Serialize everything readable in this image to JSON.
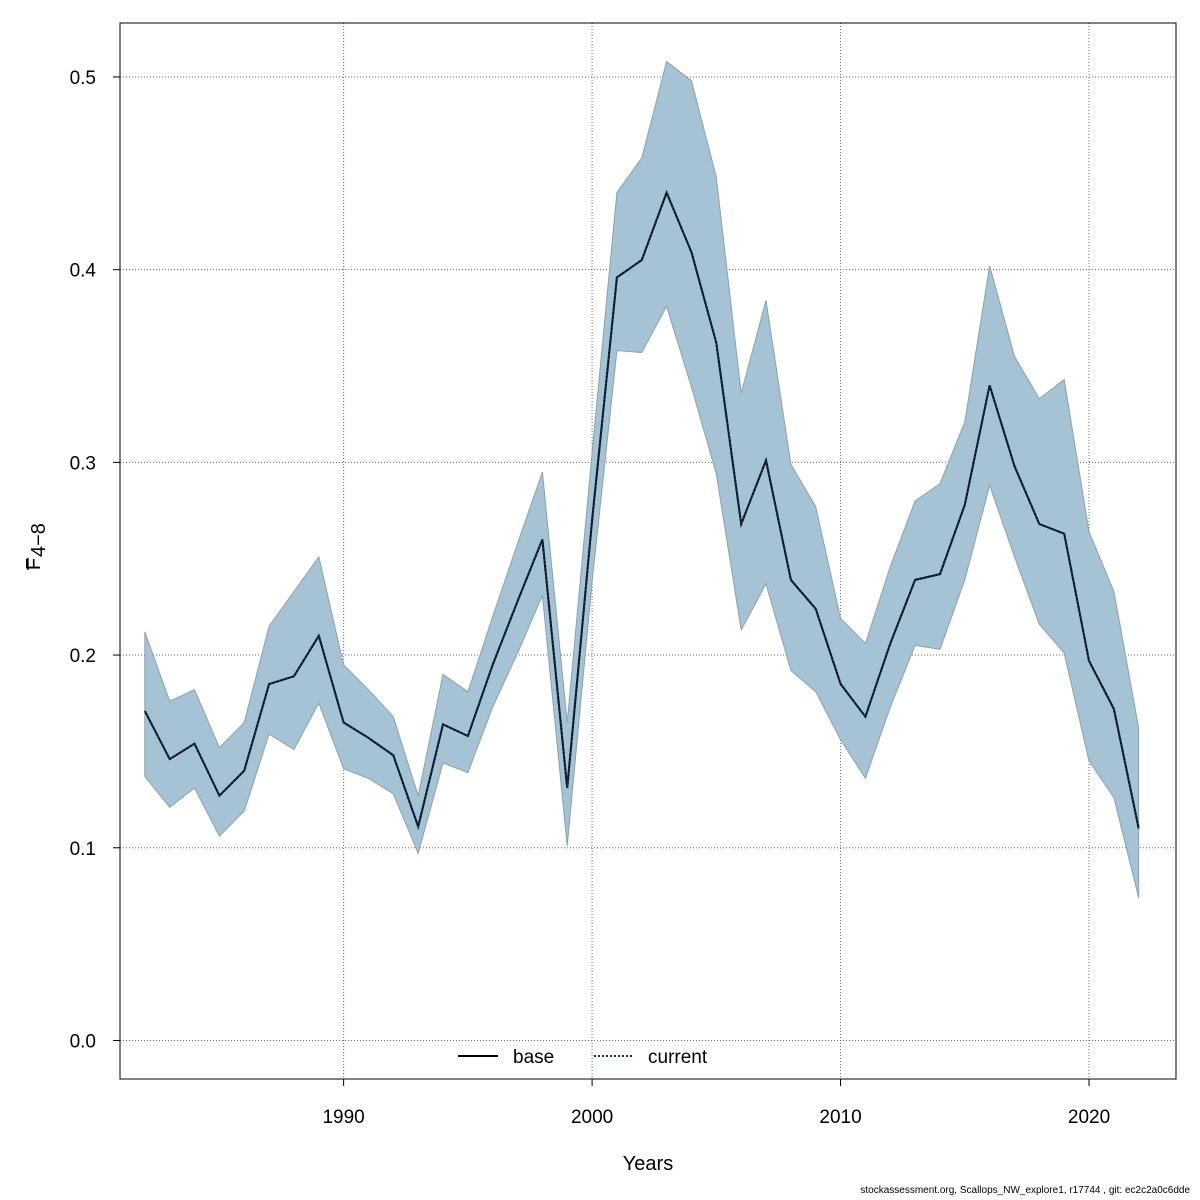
{
  "chart_data": {
    "type": "line",
    "xlabel": "Years",
    "ylabel_main": "F",
    "ylabel_sub": "4−8",
    "xlim": [
      1981,
      2023.5
    ],
    "ylim": [
      -0.02,
      0.528
    ],
    "xticks": [
      1990,
      2000,
      2010,
      2020
    ],
    "yticks": [
      0.0,
      0.1,
      0.2,
      0.3,
      0.4,
      0.5
    ],
    "ytick_labels": [
      "0.0",
      "0.1",
      "0.2",
      "0.3",
      "0.4",
      "0.5"
    ],
    "grid": true,
    "legend_position": "bottom-center",
    "colors": {
      "band": "#a5c3d4",
      "band_edge": "#8aa2ae",
      "current": "#0a3b5c",
      "base": "#000000"
    },
    "x": [
      1982,
      1983,
      1984,
      1985,
      1986,
      1987,
      1988,
      1989,
      1990,
      1991,
      1992,
      1993,
      1994,
      1995,
      1996,
      1997,
      1998,
      1999,
      2000,
      2001,
      2002,
      2003,
      2004,
      2005,
      2006,
      2007,
      2008,
      2009,
      2010,
      2011,
      2012,
      2013,
      2014,
      2015,
      2016,
      2017,
      2018,
      2019,
      2020,
      2021,
      2022
    ],
    "band_upper": [
      0.212,
      0.176,
      0.182,
      0.152,
      0.165,
      0.215,
      0.233,
      0.251,
      0.195,
      0.182,
      0.168,
      0.127,
      0.19,
      0.181,
      0.22,
      0.258,
      0.295,
      0.165,
      0.305,
      0.44,
      0.458,
      0.508,
      0.498,
      0.448,
      0.336,
      0.384,
      0.299,
      0.277,
      0.219,
      0.206,
      0.246,
      0.28,
      0.289,
      0.321,
      0.402,
      0.355,
      0.333,
      0.343,
      0.264,
      0.233,
      0.162
    ],
    "band_lower": [
      0.137,
      0.121,
      0.131,
      0.106,
      0.119,
      0.159,
      0.151,
      0.175,
      0.141,
      0.136,
      0.128,
      0.097,
      0.144,
      0.139,
      0.173,
      0.201,
      0.231,
      0.101,
      0.238,
      0.358,
      0.357,
      0.381,
      0.339,
      0.294,
      0.213,
      0.237,
      0.192,
      0.181,
      0.156,
      0.136,
      0.173,
      0.205,
      0.203,
      0.239,
      0.288,
      0.251,
      0.216,
      0.201,
      0.145,
      0.126,
      0.074
    ],
    "series": [
      {
        "name": "base",
        "style": "solid",
        "values": [
          0.171,
          0.146,
          0.154,
          0.127,
          0.14,
          0.185,
          0.189,
          0.21,
          0.165,
          0.157,
          0.148,
          0.111,
          0.164,
          0.158,
          0.195,
          0.228,
          0.26,
          0.131,
          0.27,
          0.396,
          0.405,
          0.44,
          0.409,
          0.362,
          0.268,
          0.301,
          0.239,
          0.224,
          0.185,
          0.168,
          0.206,
          0.239,
          0.242,
          0.278,
          0.34,
          0.298,
          0.268,
          0.263,
          0.197,
          0.172,
          0.11
        ]
      },
      {
        "name": "current",
        "style": "dotted",
        "values": [
          0.171,
          0.146,
          0.154,
          0.127,
          0.14,
          0.185,
          0.189,
          0.21,
          0.165,
          0.157,
          0.148,
          0.111,
          0.164,
          0.158,
          0.195,
          0.228,
          0.26,
          0.131,
          0.27,
          0.396,
          0.405,
          0.44,
          0.409,
          0.362,
          0.268,
          0.301,
          0.239,
          0.224,
          0.185,
          0.168,
          0.206,
          0.239,
          0.242,
          0.278,
          0.34,
          0.298,
          0.268,
          0.263,
          0.197,
          0.172,
          0.11
        ]
      }
    ]
  },
  "footer": "stockassessment.org, Scallops_NW_explore1, r17744 , git: ec2c2a0c6dde"
}
